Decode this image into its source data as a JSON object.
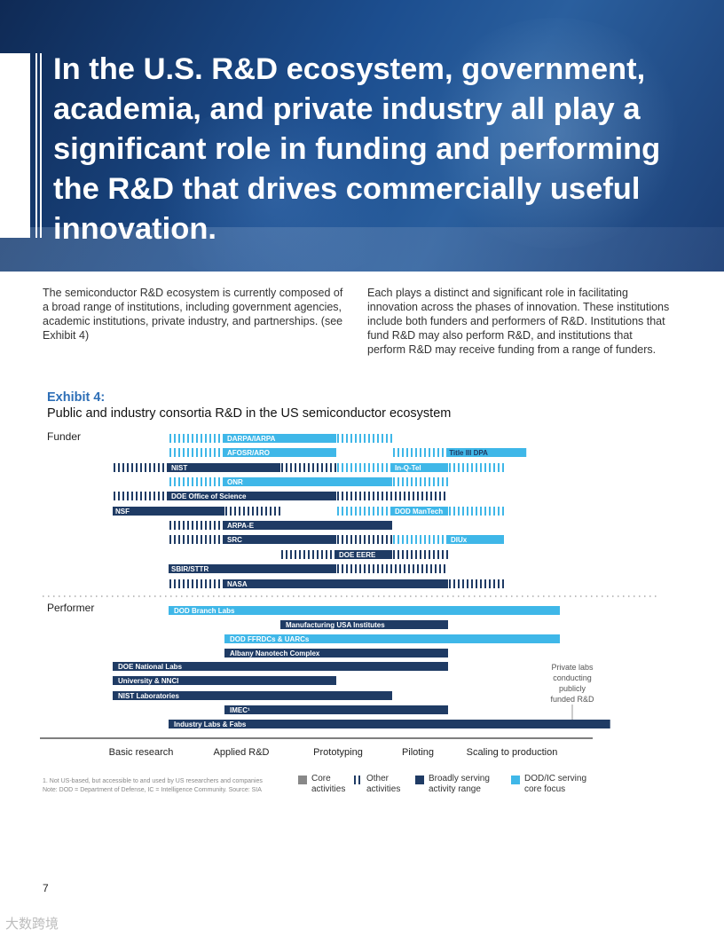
{
  "hero": {
    "title": "In the U.S. R&D ecosystem, government, academia, and private industry all play a significant role in funding and performing the R&D that drives commercially useful innovation."
  },
  "body": {
    "para1": "The semiconductor R&D ecosystem is currently composed of a broad range of institutions, including government agencies, academic institutions, private industry, and partnerships. (see Exhibit 4)",
    "para2": "Each plays a distinct and significant role in facilitating innovation across the phases of innovation. These institutions include both funders and performers of R&D. Institutions that fund R&D may also perform R&D, and institutions that perform R&D may receive funding from a range of funders."
  },
  "exhibit": {
    "label": "Exhibit 4:",
    "title": "Public and industry consortia R&D in the US semiconductor ecosystem",
    "funder_label": "Funder",
    "performer_label": "Performer",
    "private_labs_note": "Private labs conducting publicly funded R&D",
    "footnote": "1. Not US-based, but accessible to and used by US researchers and companies\nNote: DOD = Department of Defense, IC = Intelligence Community. Source: SIA",
    "legend": [
      {
        "label": "Core activities",
        "color": "#888888",
        "style": "solid"
      },
      {
        "label": "Other activities",
        "color": "#1f3b64",
        "style": "hatched"
      },
      {
        "label": "Broadly serving activity range",
        "color": "#1f3b64",
        "style": "solid"
      },
      {
        "label": "DOD/IC serving core focus",
        "color": "#3fb7e8",
        "style": "solid"
      }
    ]
  },
  "colors": {
    "navy": "#1f3b64",
    "cyan": "#3fb7e8",
    "exhibit_blue": "#2e6fb7"
  },
  "chart_data": {
    "type": "gantt",
    "phases": [
      "Basic research",
      "Applied R&D",
      "Prototyping",
      "Piloting",
      "Scaling to production"
    ],
    "funders": [
      {
        "name": "DARPA/IARPA",
        "segments": [
          {
            "from": 0.0,
            "to": 1.0,
            "kind": "hatch",
            "color": "cyan"
          },
          {
            "from": 1.0,
            "to": 3.0,
            "kind": "solid",
            "color": "cyan"
          },
          {
            "from": 3.0,
            "to": 4.0,
            "kind": "hatch",
            "color": "cyan"
          }
        ]
      },
      {
        "name": "AFOSR/ARO",
        "segments": [
          {
            "from": 0.0,
            "to": 1.0,
            "kind": "hatch",
            "color": "cyan"
          },
          {
            "from": 1.0,
            "to": 3.0,
            "kind": "solid",
            "color": "cyan"
          }
        ]
      },
      {
        "name": "Title III DPA",
        "label_pos": "end",
        "segments": [
          {
            "from": 4.0,
            "to": 5.0,
            "kind": "hatch",
            "color": "cyan"
          },
          {
            "from": 5.0,
            "to": 6.4,
            "kind": "solid",
            "color": "cyan"
          }
        ]
      },
      {
        "name": "NIST",
        "segments": [
          {
            "from": -1.0,
            "to": 0.0,
            "kind": "hatch",
            "color": "navy"
          },
          {
            "from": 0.0,
            "to": 2.0,
            "kind": "solid",
            "color": "navy"
          },
          {
            "from": 2.0,
            "to": 3.0,
            "kind": "hatch",
            "color": "navy"
          }
        ]
      },
      {
        "name": "In-Q-Tel",
        "segments": [
          {
            "from": 3.0,
            "to": 4.0,
            "kind": "hatch",
            "color": "cyan"
          },
          {
            "from": 4.0,
            "to": 5.0,
            "kind": "solid",
            "color": "cyan"
          },
          {
            "from": 5.0,
            "to": 6.0,
            "kind": "hatch",
            "color": "cyan"
          }
        ]
      },
      {
        "name": "ONR",
        "segments": [
          {
            "from": 0.0,
            "to": 1.0,
            "kind": "hatch",
            "color": "cyan"
          },
          {
            "from": 1.0,
            "to": 4.0,
            "kind": "solid",
            "color": "cyan"
          },
          {
            "from": 4.0,
            "to": 5.0,
            "kind": "hatch",
            "color": "cyan"
          }
        ]
      },
      {
        "name": "DOE Office of Science",
        "segments": [
          {
            "from": -1.0,
            "to": 0.0,
            "kind": "hatch",
            "color": "navy"
          },
          {
            "from": 0.0,
            "to": 3.0,
            "kind": "solid",
            "color": "navy"
          },
          {
            "from": 3.0,
            "to": 5.0,
            "kind": "hatch",
            "color": "navy"
          }
        ]
      },
      {
        "name": "NSF",
        "segments": [
          {
            "from": -1.0,
            "to": 1.0,
            "kind": "solid",
            "color": "navy"
          },
          {
            "from": 1.0,
            "to": 2.0,
            "kind": "hatch",
            "color": "navy"
          }
        ]
      },
      {
        "name": "DOD ManTech",
        "segments": [
          {
            "from": 3.0,
            "to": 4.0,
            "kind": "hatch",
            "color": "cyan"
          },
          {
            "from": 4.0,
            "to": 5.0,
            "kind": "solid",
            "color": "cyan"
          },
          {
            "from": 5.0,
            "to": 6.0,
            "kind": "hatch",
            "color": "cyan"
          }
        ]
      },
      {
        "name": "ARPA-E",
        "segments": [
          {
            "from": 0.0,
            "to": 1.0,
            "kind": "hatch",
            "color": "navy"
          },
          {
            "from": 1.0,
            "to": 4.0,
            "kind": "solid",
            "color": "navy"
          }
        ]
      },
      {
        "name": "SRC",
        "segments": [
          {
            "from": 0.0,
            "to": 1.0,
            "kind": "hatch",
            "color": "navy"
          },
          {
            "from": 1.0,
            "to": 3.0,
            "kind": "solid",
            "color": "navy"
          },
          {
            "from": 3.0,
            "to": 4.0,
            "kind": "hatch",
            "color": "navy"
          }
        ]
      },
      {
        "name": "DIUx",
        "segments": [
          {
            "from": 4.0,
            "to": 5.0,
            "kind": "hatch",
            "color": "cyan"
          },
          {
            "from": 5.0,
            "to": 6.0,
            "kind": "solid",
            "color": "cyan"
          }
        ]
      },
      {
        "name": "DOE EERE",
        "segments": [
          {
            "from": 2.0,
            "to": 3.0,
            "kind": "hatch",
            "color": "navy"
          },
          {
            "from": 3.0,
            "to": 4.0,
            "kind": "solid",
            "color": "navy"
          },
          {
            "from": 4.0,
            "to": 5.0,
            "kind": "hatch",
            "color": "navy"
          }
        ]
      },
      {
        "name": "SBIR/STTR",
        "segments": [
          {
            "from": 0.0,
            "to": 3.0,
            "kind": "solid",
            "color": "navy"
          },
          {
            "from": 3.0,
            "to": 5.0,
            "kind": "hatch",
            "color": "navy"
          }
        ]
      },
      {
        "name": "NASA",
        "segments": [
          {
            "from": 0.0,
            "to": 1.0,
            "kind": "hatch",
            "color": "navy"
          },
          {
            "from": 1.0,
            "to": 5.0,
            "kind": "solid",
            "color": "navy"
          },
          {
            "from": 5.0,
            "to": 6.0,
            "kind": "hatch",
            "color": "navy"
          }
        ]
      }
    ],
    "performers": [
      {
        "name": "DOD Branch Labs",
        "from": 0.0,
        "to": 7.0,
        "color": "cyan"
      },
      {
        "name": "Manufacturing USA Institutes",
        "from": 2.0,
        "to": 5.0,
        "color": "navy"
      },
      {
        "name": "DOD FFRDCs & UARCs",
        "from": 1.0,
        "to": 7.0,
        "color": "cyan"
      },
      {
        "name": "Albany Nanotech Complex",
        "from": 1.0,
        "to": 5.0,
        "color": "navy"
      },
      {
        "name": "DOE National Labs",
        "from": -1.0,
        "to": 5.0,
        "color": "navy"
      },
      {
        "name": "University & NNCI",
        "from": -1.0,
        "to": 3.0,
        "color": "navy"
      },
      {
        "name": "NIST Laboratories",
        "from": -1.0,
        "to": 4.0,
        "color": "navy"
      },
      {
        "name": "IMEC¹",
        "from": 1.0,
        "to": 5.0,
        "color": "navy"
      },
      {
        "name": "Industry Labs & Fabs",
        "from": 0.0,
        "to": 7.9,
        "color": "navy"
      }
    ]
  },
  "footer": {
    "page_number": "7",
    "watermark": "大数跨境"
  }
}
